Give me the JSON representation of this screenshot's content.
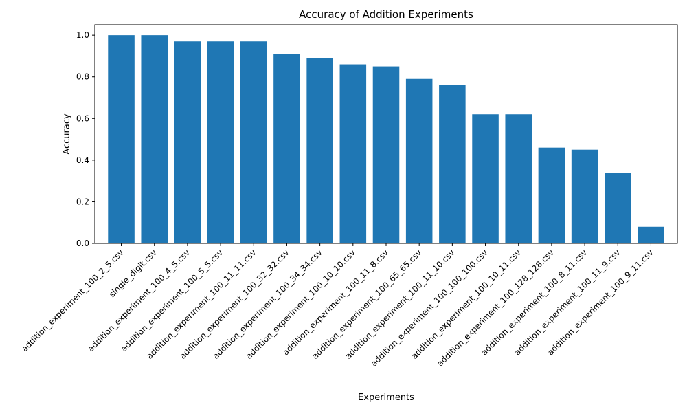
{
  "chart_data": {
    "type": "bar",
    "title": "Accuracy of Addition Experiments",
    "xlabel": "Experiments",
    "ylabel": "Accuracy",
    "ylim": [
      0,
      1.05
    ],
    "yticks": [
      0.0,
      0.2,
      0.4,
      0.6,
      0.8,
      1.0
    ],
    "ytick_labels": [
      "0.0",
      "0.2",
      "0.4",
      "0.6",
      "0.8",
      "1.0"
    ],
    "grid": false,
    "bar_color": "#1f77b4",
    "categories": [
      "addition_experiment_100_2_5.csv",
      "single_digit.csv",
      "addition_experiment_100_4_5.csv",
      "addition_experiment_100_5_5.csv",
      "addition_experiment_100_11_11.csv",
      "addition_experiment_100_32_32.csv",
      "addition_experiment_100_34_34.csv",
      "addition_experiment_100_10_10.csv",
      "addition_experiment_100_11_8.csv",
      "addition_experiment_100_65_65.csv",
      "addition_experiment_100_11_10.csv",
      "addition_experiment_100_100_100.csv",
      "addition_experiment_100_10_11.csv",
      "addition_experiment_100_128_128.csv",
      "addition_experiment_100_8_11.csv",
      "addition_experiment_100_11_9.csv",
      "addition_experiment_100_9_11.csv"
    ],
    "values": [
      1.0,
      1.0,
      0.97,
      0.97,
      0.97,
      0.91,
      0.89,
      0.86,
      0.85,
      0.79,
      0.76,
      0.62,
      0.62,
      0.46,
      0.45,
      0.34,
      0.08
    ]
  }
}
